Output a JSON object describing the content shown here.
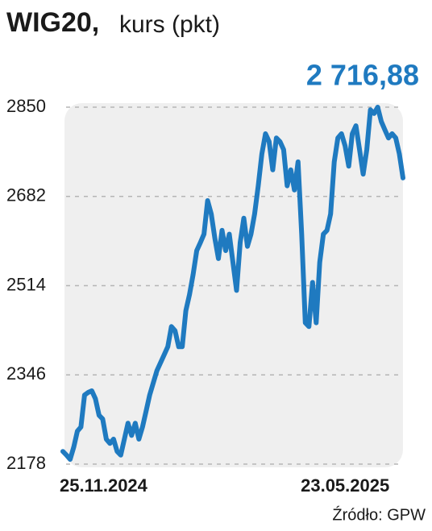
{
  "chart_data": {
    "type": "line",
    "title": "WIG20,",
    "subtitle": "kurs (pkt)",
    "source": "Źródło: GPW",
    "color": "#1f7ac0",
    "grid": true,
    "ylim": [
      2178,
      2850
    ],
    "yticks": [
      2178,
      2346,
      2514,
      2682,
      2850
    ],
    "categories": [
      "25.11.2024",
      null,
      null,
      null,
      null,
      null,
      null,
      null,
      null,
      null,
      null,
      null,
      null,
      null,
      null,
      null,
      null,
      null,
      null,
      null,
      null,
      null,
      null,
      null,
      null,
      null,
      null,
      null,
      null,
      null,
      null,
      null,
      null,
      null,
      null,
      null,
      null,
      null,
      null,
      null,
      null,
      null,
      null,
      null,
      null,
      null,
      null,
      null,
      null,
      null,
      null,
      null,
      null,
      null,
      null,
      null,
      null,
      null,
      null,
      null,
      null,
      null,
      null,
      null,
      null,
      null,
      null,
      null,
      null,
      null,
      null,
      null,
      null,
      null,
      null,
      null,
      null,
      null,
      "23.05.2025",
      null,
      null,
      null,
      null,
      null,
      null,
      null,
      null,
      null,
      null,
      null,
      null,
      null,
      null,
      null,
      null
    ],
    "values": [
      2202,
      2195,
      2187,
      2210,
      2240,
      2248,
      2308,
      2313,
      2316,
      2301,
      2270,
      2263,
      2225,
      2217,
      2225,
      2202,
      2195,
      2225,
      2255,
      2232,
      2255,
      2225,
      2248,
      2278,
      2308,
      2331,
      2354,
      2369,
      2384,
      2399,
      2437,
      2429,
      2399,
      2399,
      2467,
      2497,
      2535,
      2580,
      2595,
      2611,
      2674,
      2649,
      2603,
      2565,
      2618,
      2580,
      2611,
      2558,
      2505,
      2595,
      2641,
      2588,
      2611,
      2649,
      2702,
      2762,
      2800,
      2785,
      2732,
      2792,
      2785,
      2770,
      2702,
      2732,
      2694,
      2747,
      2611,
      2444,
      2437,
      2520,
      2444,
      2558,
      2611,
      2618,
      2649,
      2747,
      2792,
      2800,
      2777,
      2739,
      2800,
      2815,
      2770,
      2724,
      2770,
      2845,
      2838,
      2850,
      2823,
      2807,
      2792,
      2800,
      2792,
      2762,
      2716.88
    ],
    "value_labels": [
      null,
      null,
      null,
      null,
      null,
      null,
      null,
      null,
      null,
      null,
      null,
      null,
      null,
      null,
      null,
      null,
      null,
      null,
      null,
      null,
      null,
      null,
      null,
      null,
      null,
      null,
      null,
      null,
      null,
      null,
      null,
      null,
      null,
      null,
      null,
      null,
      null,
      null,
      null,
      null,
      null,
      null,
      null,
      null,
      null,
      null,
      null,
      null,
      null,
      null,
      null,
      null,
      null,
      null,
      null,
      null,
      null,
      null,
      null,
      null,
      null,
      null,
      null,
      null,
      null,
      null,
      null,
      null,
      null,
      null,
      null,
      null,
      null,
      null,
      null,
      null,
      null,
      null,
      null,
      null,
      null,
      null,
      null,
      null,
      null,
      null,
      null,
      null,
      null,
      null,
      null,
      null,
      null,
      null,
      "2 716,88"
    ]
  }
}
